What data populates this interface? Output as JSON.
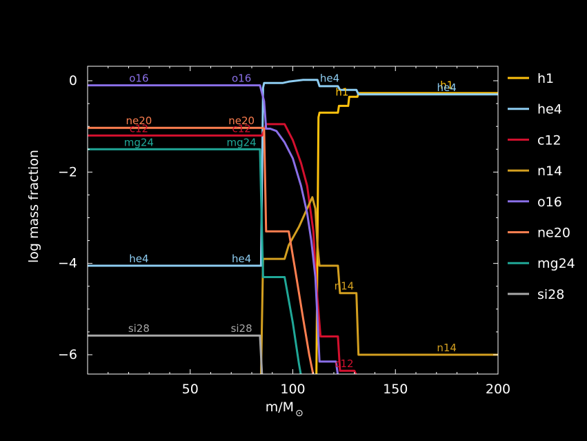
{
  "chart_data": {
    "type": "line",
    "xlabel": "m/M",
    "xlabel_sub": "⊙",
    "ylabel": "log mass fraction",
    "xlim": [
      0,
      200
    ],
    "ylim": [
      -6.45,
      0.3
    ],
    "xticks": [
      50,
      100,
      150,
      200
    ],
    "xtick_labels": [
      "50",
      "100",
      "150",
      "200"
    ],
    "yticks": [
      0,
      -2,
      -4,
      -6
    ],
    "ytick_labels": [
      "0",
      "−2",
      "−4",
      "−6"
    ],
    "grid": false,
    "legend_position": "right",
    "series": [
      {
        "name": "h1",
        "color": "#FFC20E",
        "points": [
          [
            0,
            -6.45
          ],
          [
            111.5,
            -6.45
          ],
          [
            112.5,
            -0.8
          ],
          [
            113,
            -0.7
          ],
          [
            122,
            -0.7
          ],
          [
            122.5,
            -0.55
          ],
          [
            127,
            -0.55
          ],
          [
            127.5,
            -0.35
          ],
          [
            131.5,
            -0.35
          ],
          [
            132,
            -0.27
          ],
          [
            200,
            -0.27
          ]
        ]
      },
      {
        "name": "he4",
        "color": "#8ECDF2",
        "points": [
          [
            0,
            -4.05
          ],
          [
            84.5,
            -4.05
          ],
          [
            85.5,
            -0.15
          ],
          [
            86,
            -0.05
          ],
          [
            95,
            -0.05
          ],
          [
            98,
            -0.02
          ],
          [
            105,
            0.02
          ],
          [
            112,
            0.02
          ],
          [
            113,
            -0.12
          ],
          [
            122,
            -0.12
          ],
          [
            123,
            -0.2
          ],
          [
            131,
            -0.2
          ],
          [
            132,
            -0.3
          ],
          [
            200,
            -0.3
          ]
        ]
      },
      {
        "name": "c12",
        "color": "#D4102E",
        "points": [
          [
            0,
            -1.2
          ],
          [
            85,
            -1.2
          ],
          [
            87,
            -0.95
          ],
          [
            96,
            -0.95
          ],
          [
            100,
            -1.3
          ],
          [
            104,
            -1.8
          ],
          [
            107,
            -2.3
          ],
          [
            110,
            -3.3
          ],
          [
            111.5,
            -4.5
          ],
          [
            113.5,
            -5.6
          ],
          [
            122,
            -5.6
          ],
          [
            123,
            -6.35
          ],
          [
            130,
            -6.35
          ],
          [
            131,
            -6.45
          ],
          [
            200,
            -6.45
          ]
        ]
      },
      {
        "name": "n14",
        "color": "#D4A020",
        "points": [
          [
            0,
            -6.45
          ],
          [
            84.5,
            -6.45
          ],
          [
            85.5,
            -3.9
          ],
          [
            96,
            -3.9
          ],
          [
            98,
            -3.6
          ],
          [
            103,
            -3.2
          ],
          [
            107,
            -2.8
          ],
          [
            109.5,
            -2.55
          ],
          [
            111,
            -2.8
          ],
          [
            112,
            -3.6
          ],
          [
            113,
            -4.05
          ],
          [
            122,
            -4.05
          ],
          [
            123,
            -4.65
          ],
          [
            131,
            -4.65
          ],
          [
            132,
            -6.0
          ],
          [
            200,
            -6.0
          ]
        ]
      },
      {
        "name": "o16",
        "color": "#8A6FE8",
        "points": [
          [
            0,
            -0.1
          ],
          [
            84,
            -0.1
          ],
          [
            86,
            -0.45
          ],
          [
            87,
            -1.05
          ],
          [
            89,
            -1.05
          ],
          [
            92,
            -1.1
          ],
          [
            96,
            -1.35
          ],
          [
            100,
            -1.7
          ],
          [
            104,
            -2.3
          ],
          [
            107,
            -2.9
          ],
          [
            109,
            -3.5
          ],
          [
            111,
            -4.3
          ],
          [
            112,
            -5.2
          ],
          [
            113,
            -6.15
          ],
          [
            121,
            -6.15
          ],
          [
            122,
            -6.45
          ],
          [
            200,
            -6.45
          ]
        ]
      },
      {
        "name": "ne20",
        "color": "#FF7F50",
        "points": [
          [
            0,
            -1.03
          ],
          [
            85,
            -1.03
          ],
          [
            86,
            -1.05
          ],
          [
            87,
            -3.3
          ],
          [
            98,
            -3.3
          ],
          [
            101,
            -4.1
          ],
          [
            105,
            -5.2
          ],
          [
            108,
            -6.0
          ],
          [
            110,
            -6.45
          ],
          [
            200,
            -6.45
          ]
        ]
      },
      {
        "name": "mg24",
        "color": "#20A898",
        "points": [
          [
            0,
            -1.5
          ],
          [
            84,
            -1.5
          ],
          [
            85.5,
            -4.3
          ],
          [
            96,
            -4.3
          ],
          [
            100,
            -5.3
          ],
          [
            103,
            -6.2
          ],
          [
            104,
            -6.45
          ],
          [
            200,
            -6.45
          ]
        ]
      },
      {
        "name": "si28",
        "color": "#A8A8A8",
        "points": [
          [
            0,
            -5.58
          ],
          [
            84,
            -5.58
          ],
          [
            85,
            -6.45
          ],
          [
            200,
            -6.45
          ]
        ]
      }
    ],
    "annotations": [
      {
        "text": "o16",
        "color": "#8A6FE8",
        "x": 25,
        "y": -0.1
      },
      {
        "text": "o16",
        "color": "#8A6FE8",
        "x": 75,
        "y": -0.1
      },
      {
        "text": "he4",
        "color": "#8ECDF2",
        "x": 118,
        "y": -0.1
      },
      {
        "text": "h1",
        "color": "#FFC20E",
        "x": 124,
        "y": -0.4
      },
      {
        "text": "h1",
        "color": "#FFC20E",
        "x": 175,
        "y": -0.25
      },
      {
        "text": "he4",
        "color": "#8ECDF2",
        "x": 175,
        "y": -0.3
      },
      {
        "text": "ne20",
        "color": "#FF7F50",
        "x": 25,
        "y": -1.03
      },
      {
        "text": "ne20",
        "color": "#FF7F50",
        "x": 75,
        "y": -1.03
      },
      {
        "text": "c12",
        "color": "#D4102E",
        "x": 25,
        "y": -1.2
      },
      {
        "text": "c12",
        "color": "#D4102E",
        "x": 75,
        "y": -1.2
      },
      {
        "text": "mg24",
        "color": "#20A898",
        "x": 25,
        "y": -1.5
      },
      {
        "text": "mg24",
        "color": "#20A898",
        "x": 75,
        "y": -1.5
      },
      {
        "text": "he4",
        "color": "#8ECDF2",
        "x": 25,
        "y": -4.05
      },
      {
        "text": "he4",
        "color": "#8ECDF2",
        "x": 75,
        "y": -4.05
      },
      {
        "text": "n14",
        "color": "#D4A020",
        "x": 125,
        "y": -4.65
      },
      {
        "text": "si28",
        "color": "#A8A8A8",
        "x": 25,
        "y": -5.58
      },
      {
        "text": "si28",
        "color": "#A8A8A8",
        "x": 75,
        "y": -5.58
      },
      {
        "text": "n14",
        "color": "#D4A020",
        "x": 175,
        "y": -6.0
      },
      {
        "text": "c12",
        "color": "#D4102E",
        "x": 125,
        "y": -6.35
      }
    ]
  }
}
